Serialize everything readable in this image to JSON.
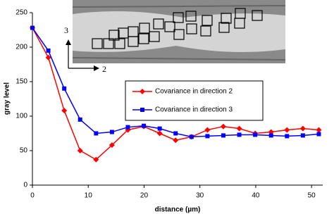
{
  "chart_data": {
    "type": "line",
    "x_label": "distance (µm)",
    "y_label": "gray level",
    "annotations": [
      "3",
      "2"
    ],
    "x": [
      0,
      2.85,
      5.7,
      8.55,
      11.4,
      14.25,
      17.1,
      19.95,
      22.8,
      25.65,
      28.5,
      31.35,
      34.2,
      37.05,
      39.9,
      42.75,
      45.6,
      48.45,
      51.3
    ],
    "series": [
      {
        "name": "Covariance in direction 2",
        "color": "#ff0000",
        "marker": "diamond",
        "values": [
          228,
          185,
          108,
          50,
          37,
          58,
          80,
          85,
          75,
          65,
          70,
          80,
          85,
          82,
          75,
          77,
          80,
          82,
          80
        ]
      },
      {
        "name": "Covariance in direction 3",
        "color": "#0000ff",
        "marker": "square",
        "values": [
          228,
          195,
          140,
          95,
          75,
          77,
          84,
          86,
          82,
          75,
          70,
          71,
          72,
          73,
          73,
          72,
          71,
          72,
          74
        ]
      }
    ],
    "xlim": [
      0,
      52
    ],
    "xticks": [
      0,
      10,
      20,
      30,
      40,
      50
    ],
    "ylim": [
      0,
      250
    ],
    "yticks": [
      0,
      50,
      100,
      150,
      200,
      250
    ]
  }
}
